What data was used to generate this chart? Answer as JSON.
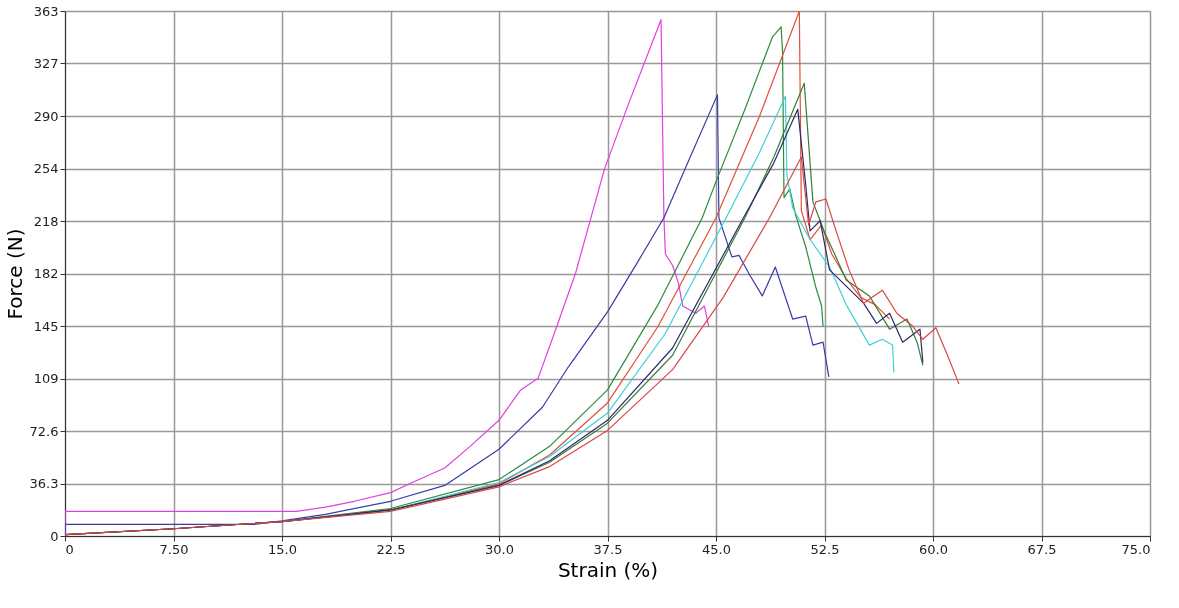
{
  "chart_data": {
    "type": "line",
    "xlabel": "Strain (%)",
    "ylabel": "Force (N)",
    "xlim": [
      0,
      75
    ],
    "ylim": [
      0,
      363
    ],
    "xticks": [
      0,
      {
        "value": 7.5,
        "label": "7.50"
      },
      {
        "value": 15,
        "label": "15.0"
      },
      {
        "value": 22.5,
        "label": "22.5"
      },
      {
        "value": 30,
        "label": "30.0"
      },
      {
        "value": 37.5,
        "label": "37.5"
      },
      {
        "value": 45,
        "label": "45.0"
      },
      {
        "value": 52.5,
        "label": "52.5"
      },
      {
        "value": 60,
        "label": "60.0"
      },
      {
        "value": 67.5,
        "label": "67.5"
      },
      {
        "value": 75,
        "label": "75.0"
      }
    ],
    "yticks": [
      0,
      36.3,
      72.6,
      {
        "value": 108.9,
        "label": "109"
      },
      {
        "value": 145.2,
        "label": "145"
      },
      {
        "value": 181.5,
        "label": "182"
      },
      {
        "value": 217.8,
        "label": "218"
      },
      {
        "value": 254.1,
        "label": "254"
      },
      {
        "value": 290.4,
        "label": "290"
      },
      {
        "value": 326.7,
        "label": "327"
      },
      363
    ],
    "grid": true,
    "legend": false,
    "marker": "none",
    "line_style": "solid",
    "series": [
      {
        "color": "#e040e0",
        "x": [
          0,
          0,
          16,
          18,
          20,
          22.5,
          24,
          26.25,
          28,
          30,
          31.5,
          32.7,
          34,
          35.3,
          36.3,
          37.3,
          39,
          41.2,
          41.4,
          41.5,
          42.0,
          42.4,
          42.7,
          43.6,
          44.2,
          44.5
        ],
        "values": [
          0,
          17,
          17,
          20,
          24,
          30,
          37,
          47,
          62,
          80,
          101,
          109,
          145,
          182,
          218,
          254,
          300,
          357,
          220,
          195,
          187,
          175,
          159,
          154,
          159,
          145
        ]
      },
      {
        "color": "#3a3aa8",
        "x": [
          0,
          0,
          13,
          15,
          18,
          22.5,
          26.25,
          30,
          33,
          34.8,
          37.5,
          39.5,
          41.4,
          43,
          45.1,
          45.2,
          46.1,
          46.6,
          47.3,
          48.2,
          49.1,
          50.3,
          51.2,
          51.7,
          52.4,
          52.8
        ],
        "values": [
          0,
          8,
          8,
          10.5,
          15,
          24,
          35,
          60,
          89,
          117,
          155,
          188,
          220,
          257,
          305,
          220,
          193,
          194,
          181,
          166,
          186,
          150,
          152,
          132,
          134,
          110
        ]
      },
      {
        "color": "#2e8b3e",
        "x": [
          0,
          7.5,
          15,
          22.5,
          30,
          33.5,
          37.5,
          41,
          44.05,
          45,
          47,
          48.9,
          49.5,
          49.6,
          49.7,
          50.1,
          50.5,
          51.2,
          51.9,
          52.3,
          52.4
        ],
        "values": [
          1,
          5,
          10,
          19,
          39,
          62,
          101,
          160,
          220,
          245,
          295,
          345,
          352,
          335,
          234,
          240,
          222,
          200,
          172,
          159,
          145
        ]
      },
      {
        "color": "#e0503c",
        "x": [
          0,
          7.5,
          15,
          22.5,
          30,
          33.5,
          37.5,
          41,
          45,
          48,
          50.76,
          50.9,
          51.5,
          52.3,
          53,
          54,
          55,
          56,
          57
        ],
        "values": [
          1,
          5,
          10,
          18,
          36,
          56,
          92,
          145,
          220,
          290,
          363,
          225,
          205,
          215,
          195,
          178,
          165,
          160,
          150
        ]
      },
      {
        "color": "#40d0d8",
        "x": [
          15,
          22.5,
          30,
          33.5,
          37.5,
          41.5,
          45.7,
          48,
          49.8,
          49.9,
          50.3,
          51.5,
          52.85,
          54,
          55.6,
          56.5,
          57.2,
          57.3
        ],
        "values": [
          10,
          18,
          37,
          55,
          85,
          140,
          220,
          265,
          304,
          250,
          227,
          205,
          186,
          160,
          132,
          136,
          132,
          113
        ]
      },
      {
        "color": "#3a7a3a",
        "x": [
          0,
          7.5,
          15,
          22.5,
          30,
          33.5,
          37.5,
          42,
          47.0,
          49,
          51.1,
          51.7,
          52.5,
          53.2,
          54,
          55.6,
          57,
          58.2,
          58.9,
          59.3
        ],
        "values": [
          1,
          5,
          10,
          18,
          35,
          51,
          78,
          125,
          220,
          262,
          313,
          231,
          210,
          195,
          177,
          166,
          143,
          150,
          134,
          118
        ]
      },
      {
        "color": "#2a2a6a",
        "x": [
          0,
          7.5,
          15,
          22.5,
          30,
          33.5,
          37.5,
          42,
          46.9,
          49,
          50.65,
          51.2,
          51.5,
          52.2,
          52.85,
          55.2,
          56.1,
          57,
          57.9,
          59.1,
          59.3
        ],
        "values": [
          1,
          5,
          10,
          18,
          35,
          52,
          80,
          130,
          220,
          258,
          295,
          243,
          211,
          218,
          184,
          161,
          147,
          154,
          134,
          143,
          120
        ]
      },
      {
        "color": "#d84848",
        "x": [
          0,
          7.5,
          15,
          22.5,
          30,
          33.5,
          37.5,
          42,
          45.5,
          48.7,
          50.9,
          51.4,
          51.9,
          52.6,
          53.3,
          54.2,
          55.2,
          56.5,
          57.5,
          58.6,
          59.3,
          60.2,
          61.0,
          61.8
        ],
        "values": [
          1,
          5,
          10,
          17,
          34,
          48,
          73,
          115,
          165,
          220,
          262,
          215,
          231,
          233,
          211,
          184,
          161,
          170,
          154,
          145,
          136,
          144,
          125,
          105
        ]
      }
    ]
  }
}
